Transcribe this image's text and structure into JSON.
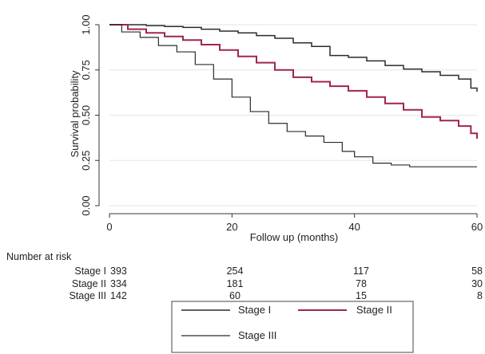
{
  "chart_data": {
    "type": "line",
    "title": "",
    "xlabel": "Follow up (months)",
    "ylabel": "Survival probability",
    "xlim": [
      0,
      60
    ],
    "ylim": [
      0,
      1
    ],
    "x_ticks": [
      0,
      20,
      40,
      60
    ],
    "y_ticks": [
      "0.00",
      "0.25",
      "0.50",
      "0.75",
      "1.00"
    ],
    "grid": "horizontal",
    "legend_position": "bottom",
    "series": [
      {
        "name": "Stage I",
        "color": "#2b2b2b",
        "points": [
          [
            0,
            1.0
          ],
          [
            3,
            1.0
          ],
          [
            6,
            0.995
          ],
          [
            9,
            0.99
          ],
          [
            12,
            0.985
          ],
          [
            15,
            0.975
          ],
          [
            18,
            0.965
          ],
          [
            21,
            0.955
          ],
          [
            24,
            0.94
          ],
          [
            27,
            0.925
          ],
          [
            30,
            0.9
          ],
          [
            33,
            0.88
          ],
          [
            36,
            0.83
          ],
          [
            39,
            0.82
          ],
          [
            42,
            0.8
          ],
          [
            45,
            0.775
          ],
          [
            48,
            0.755
          ],
          [
            51,
            0.74
          ],
          [
            54,
            0.72
          ],
          [
            57,
            0.7
          ],
          [
            59,
            0.65
          ],
          [
            60,
            0.63
          ]
        ]
      },
      {
        "name": "Stage II",
        "color": "#a0264a",
        "points": [
          [
            0,
            1.0
          ],
          [
            3,
            0.975
          ],
          [
            6,
            0.955
          ],
          [
            9,
            0.935
          ],
          [
            12,
            0.915
          ],
          [
            15,
            0.89
          ],
          [
            18,
            0.86
          ],
          [
            21,
            0.825
          ],
          [
            24,
            0.79
          ],
          [
            27,
            0.75
          ],
          [
            30,
            0.71
          ],
          [
            33,
            0.685
          ],
          [
            36,
            0.66
          ],
          [
            39,
            0.635
          ],
          [
            42,
            0.6
          ],
          [
            45,
            0.565
          ],
          [
            48,
            0.53
          ],
          [
            51,
            0.49
          ],
          [
            54,
            0.47
          ],
          [
            57,
            0.44
          ],
          [
            59,
            0.4
          ],
          [
            60,
            0.37
          ]
        ]
      },
      {
        "name": "Stage III",
        "color": "#2b2b2b",
        "points": [
          [
            0,
            1.0
          ],
          [
            2,
            0.96
          ],
          [
            5,
            0.93
          ],
          [
            8,
            0.885
          ],
          [
            11,
            0.85
          ],
          [
            14,
            0.78
          ],
          [
            17,
            0.7
          ],
          [
            20,
            0.6
          ],
          [
            23,
            0.52
          ],
          [
            26,
            0.455
          ],
          [
            29,
            0.41
          ],
          [
            32,
            0.385
          ],
          [
            35,
            0.35
          ],
          [
            38,
            0.3
          ],
          [
            40,
            0.27
          ],
          [
            43,
            0.235
          ],
          [
            46,
            0.225
          ],
          [
            49,
            0.215
          ],
          [
            52,
            0.215
          ],
          [
            55,
            0.215
          ],
          [
            60,
            0.215
          ]
        ]
      }
    ],
    "risk_table": {
      "title": "Number at risk",
      "times": [
        0,
        20,
        40,
        60
      ],
      "rows": [
        {
          "label": "Stage I",
          "values": [
            "393",
            "254",
            "117",
            "58"
          ]
        },
        {
          "label": "Stage II",
          "values": [
            "334",
            "181",
            "78",
            "30"
          ]
        },
        {
          "label": "Stage III",
          "values": [
            "142",
            "60",
            "15",
            "8"
          ]
        }
      ]
    }
  }
}
